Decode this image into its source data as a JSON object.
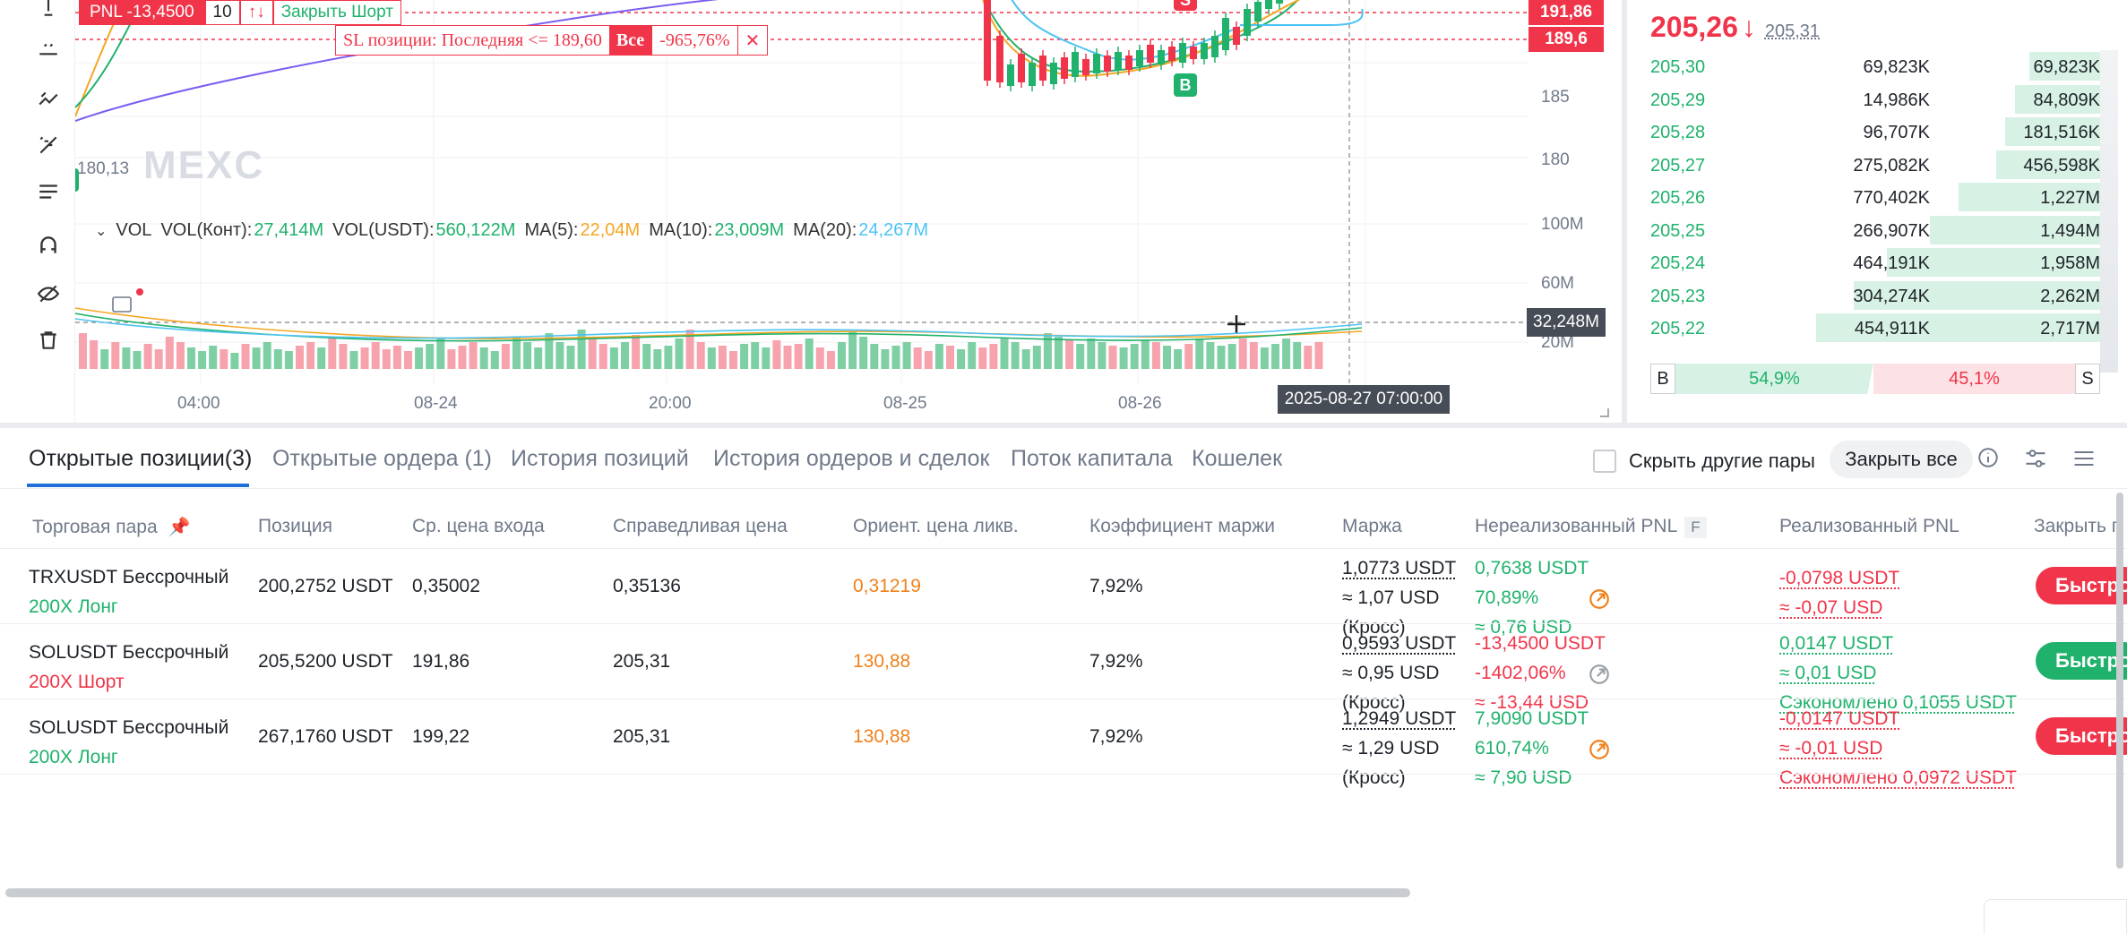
{
  "chart": {
    "pnl_label": "PNL -13,4500",
    "pnl_qty": "10",
    "close_short": "Закрыть Шорт",
    "sl_text": "SL позиции: Последняя <= 189,60",
    "sl_all": "Все",
    "sl_pct": "-965,76%",
    "sl_close": "✕",
    "watermark": "MEXC",
    "wm_price": "180,13",
    "price_ticks": [
      "185",
      "180",
      "100M",
      "60M",
      "20M"
    ],
    "price_tag_1": "191,86",
    "price_tag_2": "189,6",
    "vol_legend": {
      "title": "VOL",
      "vol_cont_label": "VOL(Конт):",
      "vol_cont": "27,414M",
      "vol_usdt_label": "VOL(USDT):",
      "vol_usdt": "560,122M",
      "ma5_label": "MA(5):",
      "ma5": "22,04M",
      "ma10_label": "MA(10):",
      "ma10": "23,009M",
      "ma20_label": "MA(20):",
      "ma20": "24,267M"
    },
    "time_ticks": [
      "04:00",
      "08-24",
      "20:00",
      "08-25",
      "08-26"
    ],
    "crosshair_time": "2025-08-27 07:00:00",
    "crosshair_vol": "32,248M",
    "marker_b": "B",
    "marker_s": "S",
    "colors": {
      "up": "#20b26c",
      "down": "#f0354a",
      "ma5": "#f5a623",
      "ma10": "#20b26c",
      "ma20": "#4cc3f5",
      "ma_purple": "#7b5cf0"
    }
  },
  "orderbook": {
    "last_price": "205,26",
    "arrow": "↓",
    "mark_price": "205,31",
    "rows": [
      {
        "price": "205,30",
        "amount": "69,823K",
        "total": "69,823K",
        "depth": 0.15
      },
      {
        "price": "205,29",
        "amount": "14,986K",
        "total": "84,809K",
        "depth": 0.18
      },
      {
        "price": "205,28",
        "amount": "96,707K",
        "total": "181,516K",
        "depth": 0.2
      },
      {
        "price": "205,27",
        "amount": "275,082K",
        "total": "456,598K",
        "depth": 0.22
      },
      {
        "price": "205,26",
        "amount": "770,402K",
        "total": "1,227M",
        "depth": 0.3
      },
      {
        "price": "205,25",
        "amount": "266,907K",
        "total": "1,494M",
        "depth": 0.36
      },
      {
        "price": "205,24",
        "amount": "464,191K",
        "total": "1,958M",
        "depth": 0.45
      },
      {
        "price": "205,23",
        "amount": "304,274K",
        "total": "2,262M",
        "depth": 0.52
      },
      {
        "price": "205,22",
        "amount": "454,911K",
        "total": "2,717M",
        "depth": 0.6
      }
    ],
    "buy_label": "B",
    "buy_pct": "54,9%",
    "sell_pct": "45,1%",
    "sell_label": "S"
  },
  "positions": {
    "tabs": [
      "Открытые позиции(3)",
      "Открытые ордера (1)",
      "История позиций",
      "История ордеров и сделок",
      "Поток капитала",
      "Кошелек"
    ],
    "hide_pairs": "Скрыть другие пары",
    "close_all": "Закрыть все",
    "headers": {
      "pair": "Торговая пара",
      "position": "Позиция",
      "entry": "Ср. цена входа",
      "fair": "Справедливая цена",
      "liq": "Ориент. цена ликв.",
      "margin_ratio": "Коэффициент маржи",
      "margin": "Маржа",
      "unrealized": "Нереализованный PNL",
      "unrealized_badge": "F",
      "realized": "Реализованный PNL",
      "close": "Закрыть п"
    },
    "rows": [
      {
        "pair": "TRXUSDT Бессрочный",
        "leverage": "200X Лонг",
        "size": "200,2752 USDT",
        "entry": "0,35002",
        "fair": "0,35136",
        "liq": "0,31219",
        "margin_ratio": "7,92%",
        "margin_1": "1,0773 USDT",
        "margin_2": "≈ 1,07 USD",
        "margin_3": "(Кросс)",
        "upnl_1": "0,7638 USDT",
        "upnl_2": "70,89%",
        "upnl_3": "≈ 0,76 USD",
        "rpnl_1": "-0,0798 USDT",
        "rpnl_2": "≈ -0,07 USD",
        "rpnl_3": "",
        "btn": "Быстро"
      },
      {
        "pair": "SOLUSDT Бессрочный",
        "leverage": "200X Шорт",
        "size": "205,5200 USDT",
        "entry": "191,86",
        "fair": "205,31",
        "liq": "130,88",
        "margin_ratio": "7,92%",
        "margin_1": "0,9593 USDT",
        "margin_2": "≈ 0,95 USD",
        "margin_3": "(Кросс)",
        "upnl_1": "-13,4500 USDT",
        "upnl_2": "-1402,06%",
        "upnl_3": "≈ -13,44 USD",
        "rpnl_1": "0,0147 USDT",
        "rpnl_2": "≈ 0,01 USD",
        "rpnl_3": "Сэкономлено 0,1055 USDT",
        "btn": "Быстро"
      },
      {
        "pair": "SOLUSDT Бессрочный",
        "leverage": "200X Лонг",
        "size": "267,1760 USDT",
        "entry": "199,22",
        "fair": "205,31",
        "liq": "130,88",
        "margin_ratio": "7,92%",
        "margin_1": "1,2949 USDT",
        "margin_2": "≈ 1,29 USD",
        "margin_3": "(Кросс)",
        "upnl_1": "7,9090 USDT",
        "upnl_2": "610,74%",
        "upnl_3": "≈ 7,90 USD",
        "rpnl_1": "-0,0147 USDT",
        "rpnl_2": "≈ -0,01 USD",
        "rpnl_3": "Сэкономлено 0,0972 USDT",
        "btn": "Быстро"
      }
    ]
  }
}
